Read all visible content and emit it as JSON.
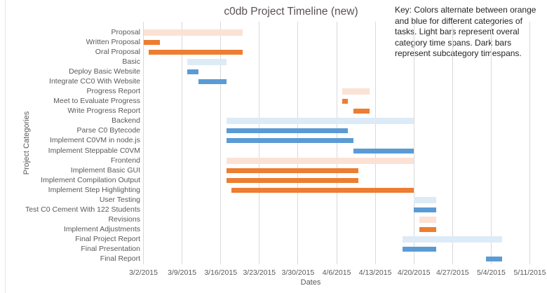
{
  "title": "c0db Project Timeline (new)",
  "key_note": {
    "lines": [
      "Key: Colors alternate between orange",
      "and blue for different categories of",
      "tasks. Light bars represent overal",
      "category time spans. Dark bars",
      "represent subcategory timespans."
    ]
  },
  "axes": {
    "x_label": "Dates",
    "y_label": "Project Categories",
    "x_ticks": [
      "3/2/2015",
      "3/9/2015",
      "3/16/2015",
      "3/23/2015",
      "3/30/2015",
      "4/6/2015",
      "4/13/2015",
      "4/20/2015",
      "4/27/2015",
      "5/4/2015",
      "5/11/2015"
    ]
  },
  "palette": {
    "light_orange": "#FBE2D5",
    "dark_orange": "#ED7D31",
    "light_blue": "#DDEBF7",
    "dark_blue": "#5B9BD5",
    "gridline": "#D9D9D9"
  },
  "chart_data": {
    "type": "bar",
    "subtype": "gantt",
    "title": "c0db Project Timeline (new)",
    "xlabel": "Dates",
    "ylabel": "Project Categories",
    "x_range": [
      "3/2/2015",
      "5/11/2015"
    ],
    "x_tick_interval_days": 7,
    "grid": "vertical-only",
    "legend": "none",
    "tasks": [
      {
        "label": "Proposal",
        "start": "3/2/2015",
        "end": "3/20/2015",
        "style": "light_orange"
      },
      {
        "label": "Written Proposal",
        "start": "3/2/2015",
        "end": "3/5/2015",
        "style": "dark_orange"
      },
      {
        "label": "Oral Proposal",
        "start": "3/3/2015",
        "end": "3/20/2015",
        "style": "dark_orange"
      },
      {
        "label": "Basic",
        "start": "3/10/2015",
        "end": "3/17/2015",
        "style": "light_blue"
      },
      {
        "label": "Deploy Basic Website",
        "start": "3/10/2015",
        "end": "3/12/2015",
        "style": "dark_blue"
      },
      {
        "label": "Integrate CC0 With Website",
        "start": "3/12/2015",
        "end": "3/17/2015",
        "style": "dark_blue"
      },
      {
        "label": "Progress Report",
        "start": "4/7/2015",
        "end": "4/12/2015",
        "style": "light_orange"
      },
      {
        "label": "Meet to Evaluate Progress",
        "start": "4/7/2015",
        "end": "4/8/2015",
        "style": "dark_orange"
      },
      {
        "label": "Write Progress Report",
        "start": "4/9/2015",
        "end": "4/12/2015",
        "style": "dark_orange"
      },
      {
        "label": "Backend",
        "start": "3/17/2015",
        "end": "4/20/2015",
        "style": "light_blue"
      },
      {
        "label": "Parse C0 Bytecode",
        "start": "3/17/2015",
        "end": "4/8/2015",
        "style": "dark_blue"
      },
      {
        "label": "Implement C0VM in node.js",
        "start": "3/17/2015",
        "end": "4/9/2015",
        "style": "dark_blue"
      },
      {
        "label": "Implement Steppable C0VM",
        "start": "4/9/2015",
        "end": "4/20/2015",
        "style": "dark_blue"
      },
      {
        "label": "Frontend",
        "start": "3/17/2015",
        "end": "4/20/2015",
        "style": "light_orange"
      },
      {
        "label": "Implement Basic GUI",
        "start": "3/17/2015",
        "end": "4/10/2015",
        "style": "dark_orange"
      },
      {
        "label": "Implement Compilation Output",
        "start": "3/17/2015",
        "end": "4/10/2015",
        "style": "dark_orange"
      },
      {
        "label": "Implement Step Highlighting",
        "start": "3/18/2015",
        "end": "4/20/2015",
        "style": "dark_orange"
      },
      {
        "label": "User Testing",
        "start": "4/20/2015",
        "end": "4/24/2015",
        "style": "light_blue"
      },
      {
        "label": "Test C0 Cement With 122 Students",
        "start": "4/20/2015",
        "end": "4/24/2015",
        "style": "dark_blue"
      },
      {
        "label": "Revisions",
        "start": "4/21/2015",
        "end": "4/24/2015",
        "style": "light_orange"
      },
      {
        "label": "Implement Adjustments",
        "start": "4/21/2015",
        "end": "4/24/2015",
        "style": "dark_orange"
      },
      {
        "label": "Final Project Report",
        "start": "4/18/2015",
        "end": "5/6/2015",
        "style": "light_blue"
      },
      {
        "label": "Final Presentation",
        "start": "4/18/2015",
        "end": "4/24/2015",
        "style": "dark_blue"
      },
      {
        "label": "Final Report",
        "start": "5/3/2015",
        "end": "5/6/2015",
        "style": "dark_blue"
      }
    ]
  }
}
